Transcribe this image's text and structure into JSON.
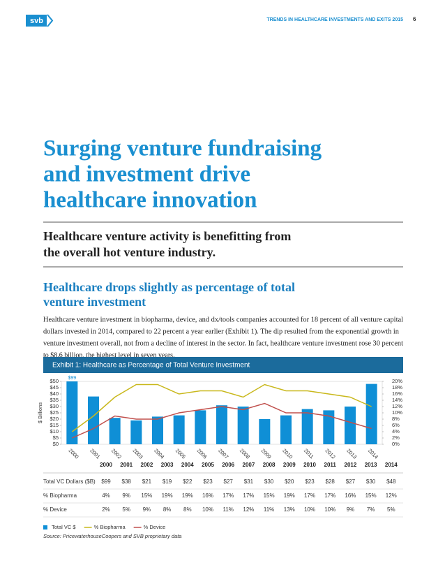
{
  "header": {
    "logo": "svb",
    "running_title": "TRENDS IN HEALTHCARE INVESTMENTS AND EXITS 2015",
    "page_number": "6"
  },
  "title_lines": [
    "Surging venture fundraising",
    "and investment drive",
    "healthcare innovation"
  ],
  "subtitle_lines": [
    "Healthcare venture activity is benefitting from",
    "the overall hot venture industry."
  ],
  "section_heading_lines": [
    "Healthcare drops slightly as percentage of total",
    "venture investment"
  ],
  "body_lines": [
    "Healthcare venture investment in biopharma, device, and dx/tools companies accounted for 18 percent of all venture capital",
    "dollars invested in 2014, compared to 22 percent a year earlier (Exhibit 1). The dip resulted from the exponential growth in",
    "venture investment overall, not from a decline of interest in the sector. In fact, healthcare venture investment rose 30 percent",
    "to $8.6 billion, the highest level in seven years."
  ],
  "exhibit_title": "Exhibit 1: Healthcare as Percentage of Total Venture Investment",
  "chart_data": {
    "type": "bar",
    "categories": [
      "2000",
      "2001",
      "2002",
      "2003",
      "2004",
      "2005",
      "2006",
      "2007",
      "2008",
      "2009",
      "2010",
      "2011",
      "2012",
      "2013",
      "2014"
    ],
    "series": [
      {
        "name": "Total VC $",
        "type": "bar",
        "color": "#0f8fd6",
        "values": [
          99,
          38,
          21,
          19,
          22,
          23,
          27,
          31,
          30,
          20,
          23,
          28,
          27,
          30,
          48
        ],
        "value_labels": [
          "$99",
          null,
          null,
          null,
          null,
          null,
          null,
          null,
          null,
          null,
          null,
          null,
          null,
          null,
          null
        ]
      },
      {
        "name": "% Biopharma",
        "type": "line",
        "axis": "y2",
        "color": "#c9b81c",
        "values": [
          4,
          9,
          15,
          19,
          19,
          16,
          17,
          17,
          15,
          19,
          17,
          17,
          16,
          15,
          12
        ]
      },
      {
        "name": "% Device",
        "type": "line",
        "axis": "y2",
        "color": "#c0504d",
        "values": [
          2,
          5,
          9,
          8,
          8,
          10,
          11,
          12,
          11,
          13,
          10,
          10,
          9,
          7,
          5
        ]
      }
    ],
    "ylabel": "$ Billions",
    "ylim": [
      0,
      50
    ],
    "yticks": [
      {
        "value": 0,
        "label": "$0"
      },
      {
        "value": 5,
        "label": "$5"
      },
      {
        "value": 10,
        "label": "$10"
      },
      {
        "value": 15,
        "label": "$15"
      },
      {
        "value": 20,
        "label": "$20"
      },
      {
        "value": 25,
        "label": "$25"
      },
      {
        "value": 30,
        "label": "$30"
      },
      {
        "value": 35,
        "label": "$35"
      },
      {
        "value": 40,
        "label": "$40"
      },
      {
        "value": 45,
        "label": "$45"
      },
      {
        "value": 50,
        "label": "$50"
      }
    ],
    "y2lim": [
      0,
      20
    ],
    "y2ticks": [
      {
        "value": 0,
        "label": "0%"
      },
      {
        "value": 2,
        "label": "2%"
      },
      {
        "value": 4,
        "label": "4%"
      },
      {
        "value": 6,
        "label": "6%"
      },
      {
        "value": 8,
        "label": "8%"
      },
      {
        "value": 10,
        "label": "10%"
      },
      {
        "value": 12,
        "label": "12%"
      },
      {
        "value": 14,
        "label": "14%"
      },
      {
        "value": 16,
        "label": "16%"
      },
      {
        "value": 18,
        "label": "18%"
      },
      {
        "value": 20,
        "label": "20%"
      }
    ]
  },
  "table": {
    "rows": [
      {
        "label": "Total VC Dollars ($B)",
        "cells": [
          "$99",
          "$38",
          "$21",
          "$19",
          "$22",
          "$23",
          "$27",
          "$31",
          "$30",
          "$20",
          "$23",
          "$28",
          "$27",
          "$30",
          "$48"
        ]
      },
      {
        "label": "% Biopharma",
        "cells": [
          "4%",
          "9%",
          "15%",
          "19%",
          "19%",
          "16%",
          "17%",
          "17%",
          "15%",
          "19%",
          "17%",
          "17%",
          "16%",
          "15%",
          "12%"
        ]
      },
      {
        "label": "% Device",
        "cells": [
          "2%",
          "5%",
          "9%",
          "8%",
          "8%",
          "10%",
          "11%",
          "12%",
          "11%",
          "13%",
          "10%",
          "10%",
          "9%",
          "7%",
          "5%"
        ]
      }
    ]
  },
  "source": "Source: PricewaterhouseCoopers and SVB proprietary data"
}
